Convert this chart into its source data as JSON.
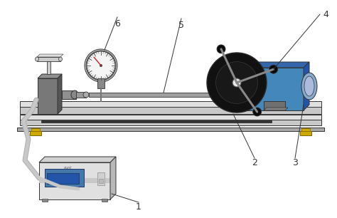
{
  "bg_color": "#ffffff",
  "base_rail_top": "#e0e0e0",
  "base_rail_front": "#c8c8c8",
  "base_rail_bottom": "#b0b0b0",
  "base_plate_color": "#a8a8a8",
  "dark_bar_color": "#303030",
  "yellow_foot": "#ccaa00",
  "shaft_color": "#a0a0a0",
  "shaft_top": "#d0d0d0",
  "mount_dark": "#555555",
  "mount_mid": "#787878",
  "mount_light": "#909090",
  "chuck_color": "#888888",
  "chuck_dark": "#606060",
  "disk_color": "#111111",
  "disk_hub": "#e8e8e8",
  "motor_blue_front": "#4488bb",
  "motor_blue_top": "#3366aa",
  "motor_blue_side": "#2255aa",
  "motor_cyl": "#aaccee",
  "gauge_ring": "#999999",
  "gauge_face": "#f5f5f5",
  "gauge_needle": "#cc2222",
  "handle_color": "#cccccc",
  "handle_dark": "#aaaaaa",
  "cable_color": "#b0b0b0",
  "box_front": "#e0e0e0",
  "box_top": "#d0d0d0",
  "box_side": "#b8b8b8",
  "box_stripe": "#c8c8c8",
  "screen_color": "#4477aa",
  "line_color": "#333333",
  "label_color": "#111111",
  "arm_color": "#888888",
  "arm_ball": "#0a0a0a",
  "label_fontsize": 9
}
